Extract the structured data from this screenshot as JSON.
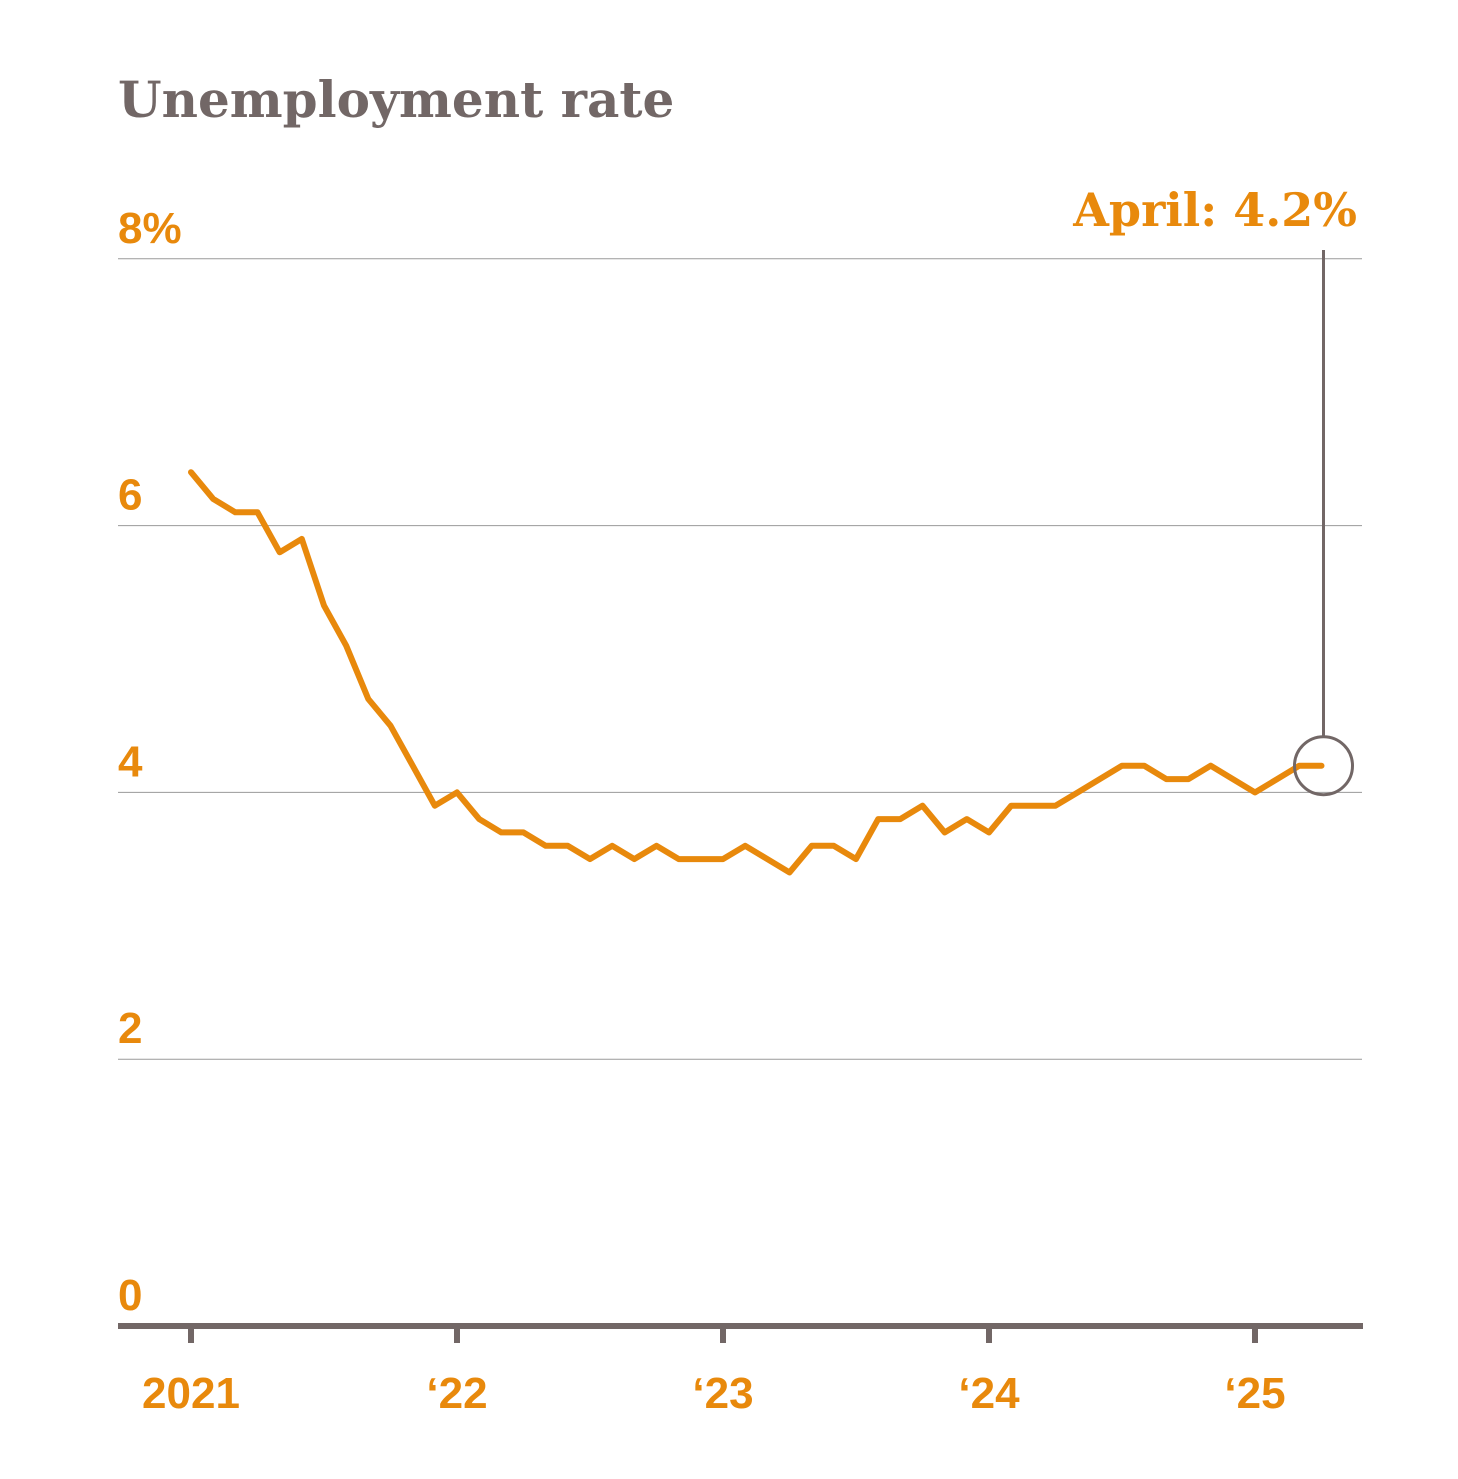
{
  "chart_data": {
    "type": "line",
    "title": "Unemployment rate",
    "xlabel": "",
    "ylabel": "",
    "ylim": [
      0,
      8
    ],
    "y_ticks": [
      {
        "value": 0,
        "label": "0"
      },
      {
        "value": 2,
        "label": "2"
      },
      {
        "value": 4,
        "label": "4"
      },
      {
        "value": 6,
        "label": "6"
      },
      {
        "value": 8,
        "label": "8%"
      }
    ],
    "x_ticks": [
      {
        "year": 2021,
        "label": "2021"
      },
      {
        "year": 2022,
        "label": "‘22"
      },
      {
        "year": 2023,
        "label": "‘23"
      },
      {
        "year": 2024,
        "label": "‘24"
      },
      {
        "year": 2025,
        "label": "‘25"
      }
    ],
    "x_start": "2021-01",
    "x_end": "2025-04",
    "frequency": "monthly",
    "grid": true,
    "series": [
      {
        "color": "#E8890C",
        "values": [
          6.4,
          6.2,
          6.1,
          6.1,
          5.8,
          5.9,
          5.4,
          5.1,
          4.7,
          4.5,
          4.2,
          3.9,
          4.0,
          3.8,
          3.7,
          3.7,
          3.6,
          3.6,
          3.5,
          3.6,
          3.5,
          3.6,
          3.5,
          3.5,
          3.5,
          3.6,
          3.5,
          3.4,
          3.6,
          3.6,
          3.5,
          3.8,
          3.8,
          3.9,
          3.7,
          3.8,
          3.7,
          3.9,
          3.9,
          3.9,
          4.0,
          4.1,
          4.2,
          4.2,
          4.1,
          4.1,
          4.2,
          4.1,
          4.0,
          4.1,
          4.2,
          4.2
        ]
      }
    ],
    "annotation": {
      "label": "April: 4.2%",
      "month": "2025-04",
      "value": 4.2
    },
    "colors": {
      "line": "#E8890C",
      "labels": "#E8890C",
      "title": "#726766",
      "axis": "#726766",
      "grid": "#9a9a9a"
    }
  }
}
